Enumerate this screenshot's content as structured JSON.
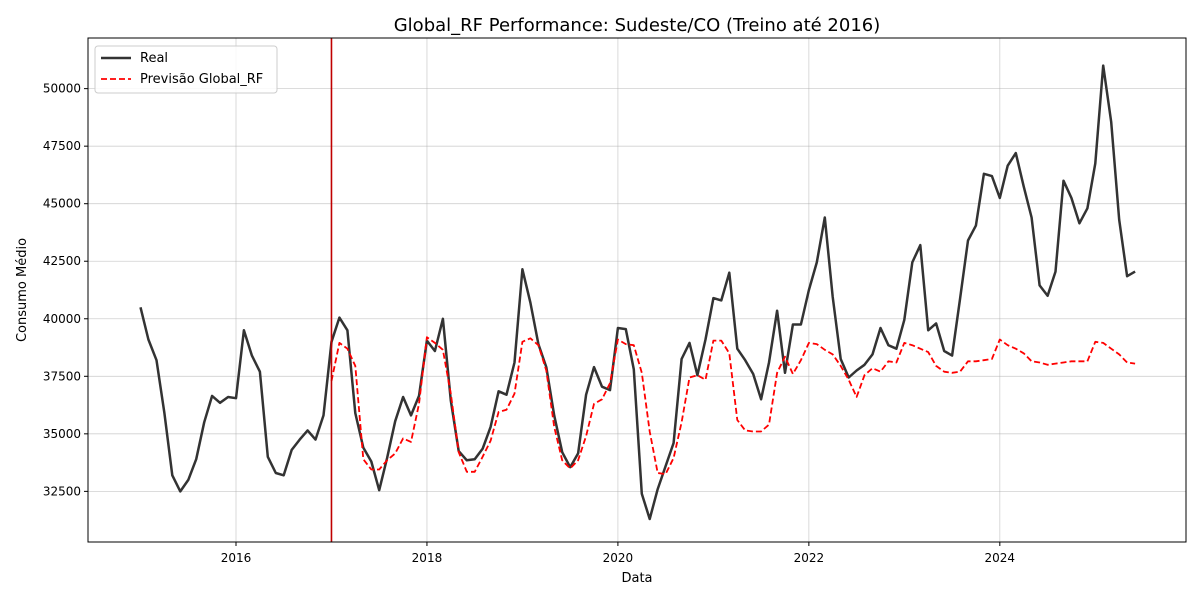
{
  "chart_data": {
    "type": "line",
    "title": "Global_RF Performance: Sudeste/CO (Treino até 2016)",
    "xlabel": "Data",
    "ylabel": "Consumo Médio",
    "xlim": [
      2014.45,
      2025.95
    ],
    "ylim": [
      30300,
      52200
    ],
    "x_ticks": [
      2016,
      2018,
      2020,
      2022,
      2024
    ],
    "x_tick_labels": [
      "2016",
      "2018",
      "2020",
      "2022",
      "2024"
    ],
    "y_ticks": [
      32500,
      35000,
      37500,
      40000,
      42500,
      45000,
      47500,
      50000
    ],
    "y_tick_labels": [
      "32500",
      "35000",
      "37500",
      "40000",
      "42500",
      "45000",
      "47500",
      "50000"
    ],
    "grid": true,
    "legend_position": "top-left",
    "cutoff_x": 2017.0,
    "cutoff_color": "#c00000",
    "series": [
      {
        "name": "Real",
        "color": "#333333",
        "style": "solid",
        "x": [
          2015.0,
          2015.083,
          2015.167,
          2015.25,
          2015.333,
          2015.417,
          2015.5,
          2015.583,
          2015.667,
          2015.75,
          2015.833,
          2015.917,
          2016.0,
          2016.083,
          2016.167,
          2016.25,
          2016.333,
          2016.417,
          2016.5,
          2016.583,
          2016.667,
          2016.75,
          2016.833,
          2016.917,
          2017.0,
          2017.083,
          2017.167,
          2017.25,
          2017.333,
          2017.417,
          2017.5,
          2017.583,
          2017.667,
          2017.75,
          2017.833,
          2017.917,
          2018.0,
          2018.083,
          2018.167,
          2018.25,
          2018.333,
          2018.417,
          2018.5,
          2018.583,
          2018.667,
          2018.75,
          2018.833,
          2018.917,
          2019.0,
          2019.083,
          2019.167,
          2019.25,
          2019.333,
          2019.417,
          2019.5,
          2019.583,
          2019.667,
          2019.75,
          2019.833,
          2019.917,
          2020.0,
          2020.083,
          2020.167,
          2020.25,
          2020.333,
          2020.417,
          2020.5,
          2020.583,
          2020.667,
          2020.75,
          2020.833,
          2020.917,
          2021.0,
          2021.083,
          2021.167,
          2021.25,
          2021.333,
          2021.417,
          2021.5,
          2021.583,
          2021.667,
          2021.75,
          2021.833,
          2021.917,
          2022.0,
          2022.083,
          2022.167,
          2022.25,
          2022.333,
          2022.417,
          2022.5,
          2022.583,
          2022.667,
          2022.75,
          2022.833,
          2022.917,
          2023.0,
          2023.083,
          2023.167,
          2023.25,
          2023.333,
          2023.417,
          2023.5,
          2023.583,
          2023.667,
          2023.75,
          2023.833,
          2023.917,
          2024.0,
          2024.083,
          2024.167,
          2024.25,
          2024.333,
          2024.417,
          2024.5,
          2024.583,
          2024.667,
          2024.75,
          2024.833,
          2024.917,
          2025.0,
          2025.083,
          2025.167,
          2025.25,
          2025.333,
          2025.417
        ],
        "y": [
          40500,
          39100,
          38200,
          35900,
          33200,
          32500,
          33000,
          33900,
          35500,
          36650,
          36350,
          36600,
          36550,
          39500,
          38400,
          37700,
          34000,
          33300,
          33200,
          34300,
          34750,
          35150,
          34750,
          35800,
          39000,
          40050,
          39500,
          35900,
          34400,
          33800,
          32550,
          33950,
          35550,
          36600,
          35800,
          36650,
          39050,
          38600,
          40000,
          36450,
          34250,
          33850,
          33900,
          34350,
          35300,
          36850,
          36700,
          38100,
          42150,
          40700,
          38900,
          37900,
          35800,
          34200,
          33550,
          34150,
          36700,
          37900,
          37050,
          36900,
          39600,
          39550,
          37800,
          32400,
          31300,
          32600,
          33600,
          34600,
          38250,
          38950,
          37550,
          39100,
          40900,
          40800,
          42000,
          38700,
          38200,
          37600,
          36500,
          38100,
          40350,
          37650,
          39750,
          39750,
          41250,
          42450,
          44400,
          40950,
          38250,
          37450,
          37750,
          38000,
          38450,
          39600,
          38850,
          38700,
          39950,
          42450,
          43200,
          39500,
          39800,
          38600,
          38400,
          40850,
          43400,
          44050,
          46300,
          46200,
          45250,
          46650,
          47200,
          45750,
          44400,
          41450,
          41000,
          42050,
          46000,
          45250,
          44150,
          44800,
          46750,
          51000,
          48550,
          44300,
          41850,
          42050
        ]
      },
      {
        "name": "Previsão Global_RF",
        "color": "#ff0000",
        "style": "dashed",
        "x": [
          2017.0,
          2017.083,
          2017.167,
          2017.25,
          2017.333,
          2017.417,
          2017.5,
          2017.583,
          2017.667,
          2017.75,
          2017.833,
          2017.917,
          2018.0,
          2018.083,
          2018.167,
          2018.25,
          2018.333,
          2018.417,
          2018.5,
          2018.583,
          2018.667,
          2018.75,
          2018.833,
          2018.917,
          2019.0,
          2019.083,
          2019.167,
          2019.25,
          2019.333,
          2019.417,
          2019.5,
          2019.583,
          2019.667,
          2019.75,
          2019.833,
          2019.917,
          2020.0,
          2020.083,
          2020.167,
          2020.25,
          2020.333,
          2020.417,
          2020.5,
          2020.583,
          2020.667,
          2020.75,
          2020.833,
          2020.917,
          2021.0,
          2021.083,
          2021.167,
          2021.25,
          2021.333,
          2021.417,
          2021.5,
          2021.583,
          2021.667,
          2021.75,
          2021.833,
          2021.917,
          2022.0,
          2022.083,
          2022.167,
          2022.25,
          2022.333,
          2022.417,
          2022.5,
          2022.583,
          2022.667,
          2022.75,
          2022.833,
          2022.917,
          2023.0,
          2023.083,
          2023.167,
          2023.25,
          2023.333,
          2023.417,
          2023.5,
          2023.583,
          2023.667,
          2023.75,
          2023.833,
          2023.917,
          2024.0,
          2024.083,
          2024.167,
          2024.25,
          2024.333,
          2024.417,
          2024.5,
          2024.583,
          2024.667,
          2024.75,
          2024.833,
          2024.917,
          2025.0,
          2025.083,
          2025.167,
          2025.25,
          2025.333,
          2025.417
        ],
        "y": [
          37300,
          38950,
          38700,
          37950,
          33900,
          33450,
          33450,
          33850,
          34150,
          34800,
          34650,
          36300,
          39200,
          38950,
          38650,
          36750,
          34200,
          33350,
          33350,
          34000,
          34700,
          35950,
          36050,
          36750,
          39000,
          39150,
          38850,
          37750,
          35300,
          33850,
          33500,
          33850,
          34900,
          36300,
          36500,
          37200,
          39100,
          38900,
          38850,
          37650,
          35100,
          33300,
          33250,
          33950,
          35500,
          37450,
          37550,
          37350,
          39050,
          39050,
          38500,
          35600,
          35150,
          35100,
          35100,
          35400,
          37650,
          38350,
          37600,
          38200,
          38950,
          38900,
          38650,
          38450,
          37950,
          37350,
          36600,
          37550,
          37850,
          37700,
          38150,
          38100,
          38950,
          38850,
          38700,
          38550,
          37950,
          37700,
          37650,
          37700,
          38150,
          38150,
          38200,
          38250,
          39100,
          38850,
          38700,
          38500,
          38150,
          38100,
          38000,
          38050,
          38100,
          38150,
          38150,
          38150,
          39000,
          38950,
          38700,
          38450,
          38100,
          38050
        ]
      }
    ]
  }
}
